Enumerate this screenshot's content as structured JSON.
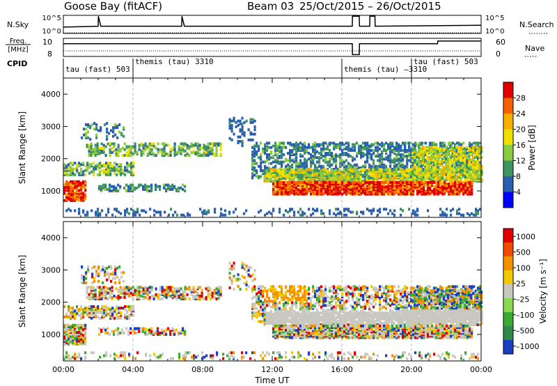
{
  "header": {
    "station": "Goose Bay (fitACF)",
    "beam": "Beam 03",
    "date_range": "25/Oct/2015 – 26/Oct/2015"
  },
  "chart_data": [
    {
      "id": "nsky-nsearch",
      "type": "line",
      "left_label": "N.Sky",
      "right_label": "N.Search",
      "left_ticks": [
        "10^5",
        "10^0"
      ],
      "right_ticks": [
        "10^5",
        "10^0"
      ],
      "x": [
        0,
        2,
        2.01,
        2.15,
        6.8,
        6.81,
        6.95,
        16.6,
        16.61,
        17.0,
        17.01,
        17.6,
        17.61,
        17.9,
        17.91,
        24
      ],
      "y": [
        0.35,
        0.4,
        0.95,
        0.4,
        0.4,
        0.95,
        0.4,
        0.4,
        0.95,
        0.95,
        0.4,
        0.4,
        0.95,
        0.95,
        0.4,
        0.45
      ]
    },
    {
      "id": "freq-nave",
      "type": "line",
      "left_label": "Freq. [MHz]",
      "right_label": "Nave",
      "left_ticks": [
        "10",
        "8"
      ],
      "right_ticks": [
        "60",
        "0"
      ],
      "x": [
        0,
        16.6,
        16.61,
        17.0,
        17.01,
        21.5,
        21.51,
        24
      ],
      "y": [
        0.7,
        0.7,
        0.1,
        0.1,
        0.7,
        0.7,
        0.85,
        0.85
      ]
    },
    {
      "id": "cpid",
      "type": "table",
      "label": "CPID",
      "segments": [
        {
          "start": 0,
          "end": 4,
          "name": "tau (fast) 503"
        },
        {
          "start": 4,
          "end": 16,
          "name": "themis (tau) 3310"
        },
        {
          "start": 16,
          "end": 20,
          "name": "themis (tau) –3310"
        },
        {
          "start": 20,
          "end": 24,
          "name": "tau (fast) 503"
        }
      ]
    },
    {
      "id": "power",
      "type": "heatmap",
      "ylabel": "Slant Range [km]",
      "ylim": [
        180,
        4500
      ],
      "xlim": [
        0,
        24
      ],
      "yticks": [
        1000,
        2000,
        3000,
        4000
      ],
      "colorbar": {
        "label": "Power [dB]",
        "ticks": [
          "4",
          "8",
          "12",
          "16",
          "20",
          "24",
          "28"
        ],
        "colors": [
          "#0000ff",
          "#2a5fb0",
          "#3f9560",
          "#8acc40",
          "#f0e000",
          "#f7b000",
          "#f56000",
          "#e00000"
        ]
      }
    },
    {
      "id": "velocity",
      "type": "heatmap",
      "ylabel": "Slant Range [km]",
      "xlabel": "Time UT",
      "ylim": [
        180,
        4500
      ],
      "xlim": [
        0,
        24
      ],
      "yticks": [
        1000,
        2000,
        3000,
        4000
      ],
      "xticks": [
        "00:00",
        "04:00",
        "08:00",
        "12:00",
        "16:00",
        "20:00",
        "00:00"
      ],
      "colorbar": {
        "label": "Velocity [m s⁻¹]",
        "ticks": [
          "1000",
          "500",
          "100",
          "25",
          "–25",
          "–100",
          "–500",
          "–1000"
        ],
        "colors": [
          "#1a3fc0",
          "#2f8a4a",
          "#3aaa30",
          "#8cd850",
          "#c8c8c0",
          "#f2c800",
          "#f29000",
          "#f24a00",
          "#e00000"
        ]
      }
    }
  ]
}
